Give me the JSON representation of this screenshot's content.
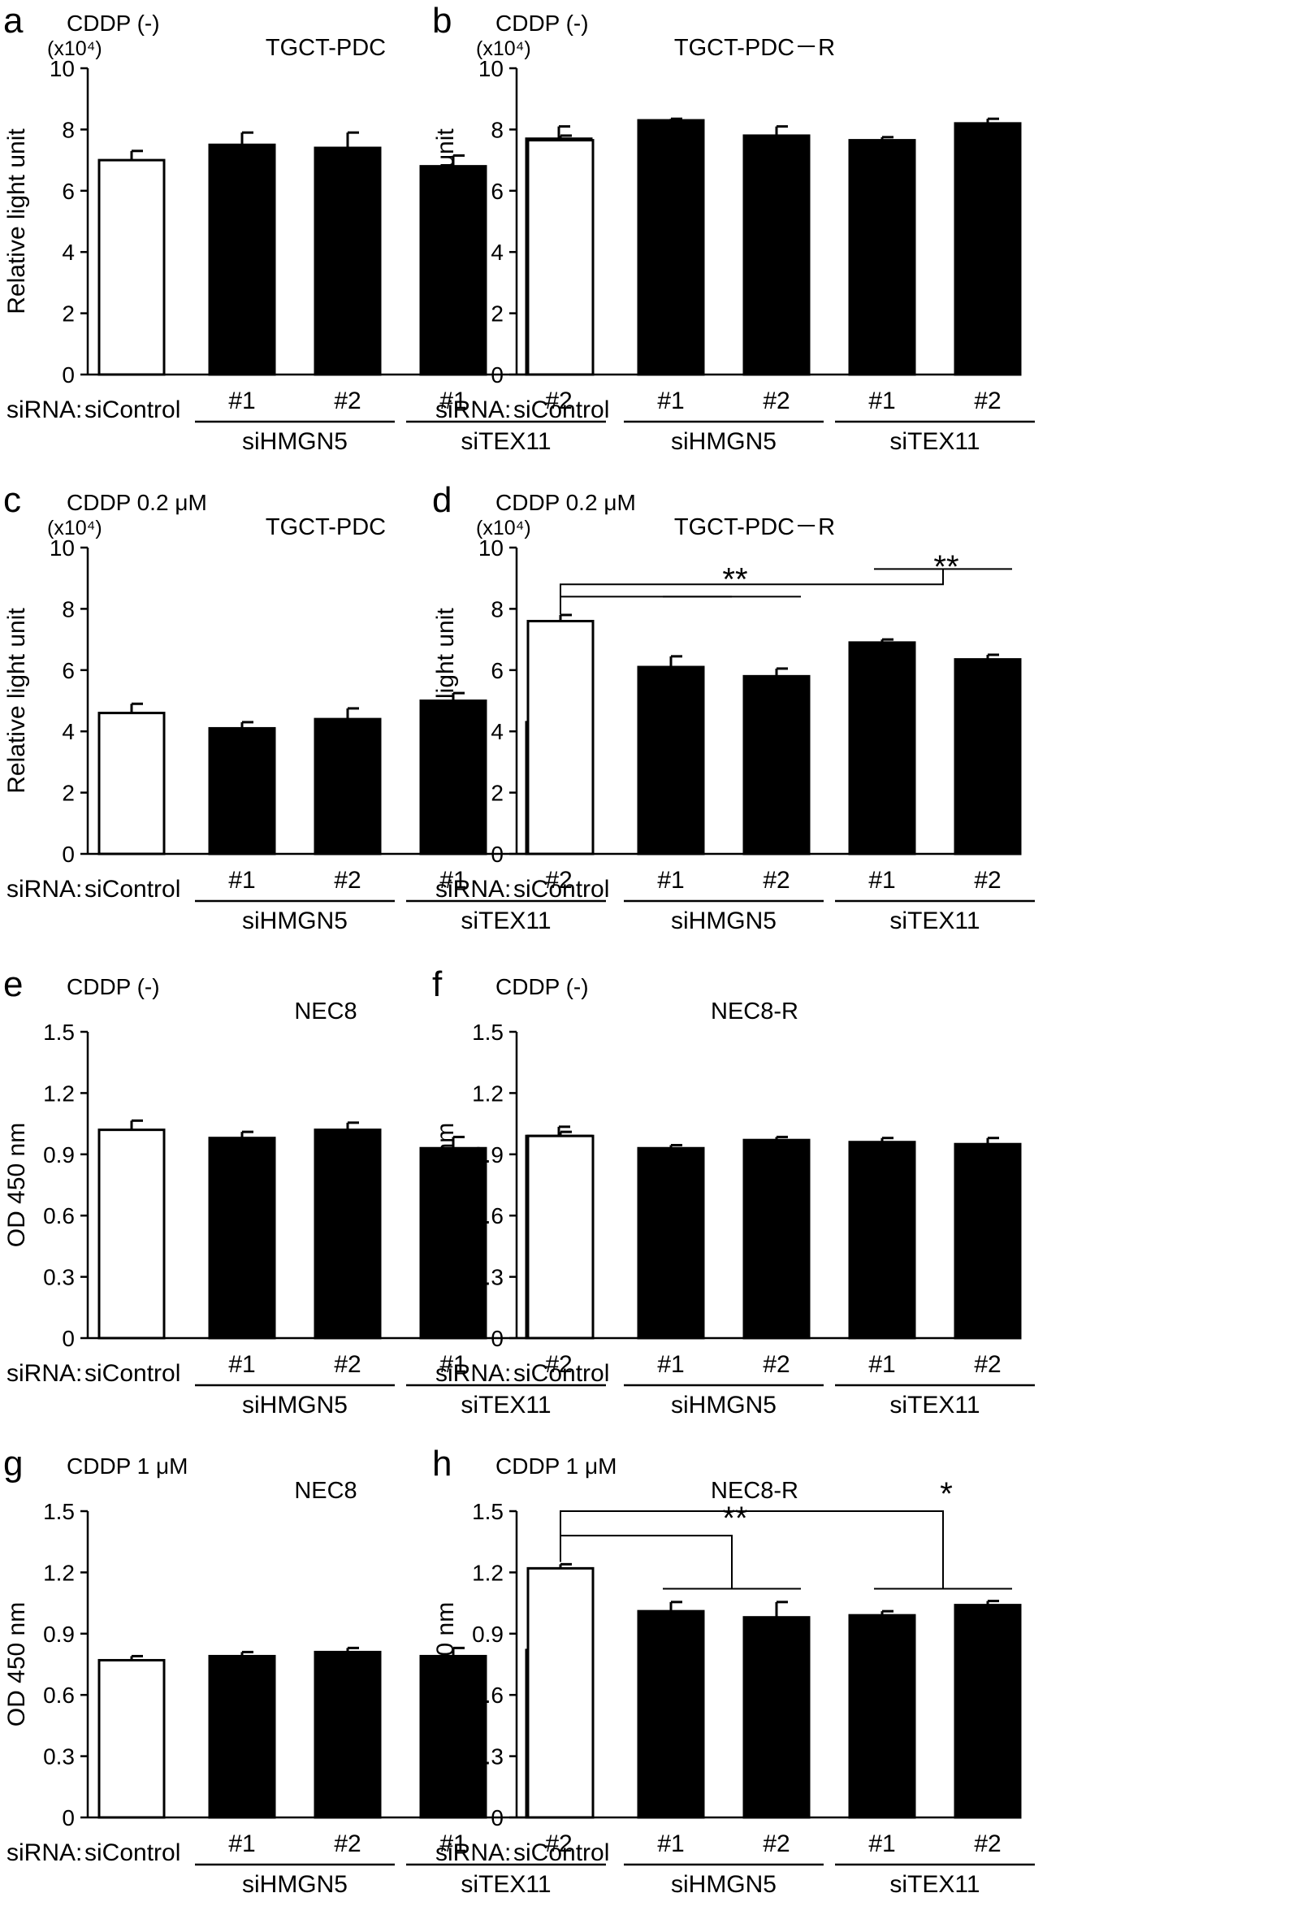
{
  "siRNA_label": "siRNA:",
  "chart_data": [
    {
      "type": "bar",
      "panel": "a",
      "condition": "CDDP (-)",
      "title": "TGCT-PDC",
      "ylabel": "Relative light unit",
      "y_multiplier": "(x10⁴)",
      "ylim": [
        0,
        10
      ],
      "yticks": [
        "0",
        "2",
        "4",
        "6",
        "8",
        "10"
      ],
      "categories": [
        "siControl",
        "#1",
        "#2",
        "#1",
        "#2"
      ],
      "groups": [
        "siHMGN5",
        "siTEX11"
      ],
      "values": [
        7.0,
        7.5,
        7.4,
        6.8,
        7.7
      ],
      "errors": [
        0.3,
        0.4,
        0.5,
        0.35,
        0.4
      ],
      "colors": [
        "#ffffff",
        "#000000",
        "#000000",
        "#000000",
        "#000000"
      ],
      "significance": []
    },
    {
      "type": "bar",
      "panel": "b",
      "condition": "CDDP (-)",
      "title": "TGCT-PDC－R",
      "ylabel": "Relative light unit",
      "y_multiplier": "(x10⁴)",
      "ylim": [
        0,
        10
      ],
      "yticks": [
        "0",
        "2",
        "4",
        "6",
        "8",
        "10"
      ],
      "categories": [
        "siControl",
        "#1",
        "#2",
        "#1",
        "#2"
      ],
      "groups": [
        "siHMGN5",
        "siTEX11"
      ],
      "values": [
        7.65,
        8.3,
        7.8,
        7.65,
        8.2
      ],
      "errors": [
        0.15,
        0.05,
        0.3,
        0.1,
        0.15
      ],
      "colors": [
        "#ffffff",
        "#000000",
        "#000000",
        "#000000",
        "#000000"
      ],
      "significance": []
    },
    {
      "type": "bar",
      "panel": "c",
      "condition": "CDDP 0.2 μM",
      "title": "TGCT-PDC",
      "ylabel": "Relative light unit",
      "y_multiplier": "(x10⁴)",
      "ylim": [
        0,
        10
      ],
      "yticks": [
        "0",
        "2",
        "4",
        "6",
        "8",
        "10"
      ],
      "categories": [
        "siControl",
        "#1",
        "#2",
        "#1",
        "#2"
      ],
      "groups": [
        "siHMGN5",
        "siTEX11"
      ],
      "values": [
        4.6,
        4.1,
        4.4,
        5.0,
        4.3
      ],
      "errors": [
        0.3,
        0.2,
        0.35,
        0.25,
        0.4
      ],
      "colors": [
        "#ffffff",
        "#000000",
        "#000000",
        "#000000",
        "#000000"
      ],
      "significance": []
    },
    {
      "type": "bar",
      "panel": "d",
      "condition": "CDDP 0.2 μM",
      "title": "TGCT-PDC－R",
      "ylabel": "Relative light unit",
      "y_multiplier": "(x10⁴)",
      "ylim": [
        0,
        10
      ],
      "yticks": [
        "0",
        "2",
        "4",
        "6",
        "8",
        "10"
      ],
      "categories": [
        "siControl",
        "#1",
        "#2",
        "#1",
        "#2"
      ],
      "groups": [
        "siHMGN5",
        "siTEX11"
      ],
      "values": [
        7.6,
        6.1,
        5.8,
        6.9,
        6.35
      ],
      "errors": [
        0.2,
        0.35,
        0.25,
        0.1,
        0.15
      ],
      "colors": [
        "#ffffff",
        "#000000",
        "#000000",
        "#000000",
        "#000000"
      ],
      "significance": [
        {
          "label": "**",
          "to_group": 0,
          "vert_y": 8.4,
          "bar_y": 7.4
        },
        {
          "label": "**",
          "to_group": 1,
          "vert_y": 9.3,
          "bar_y": 7.8
        }
      ]
    },
    {
      "type": "bar",
      "panel": "e",
      "condition": "CDDP (-)",
      "title": "NEC8",
      "ylabel": "OD 450 nm",
      "y_multiplier": "",
      "ylim": [
        0,
        1.5
      ],
      "yticks": [
        "0",
        "0.3",
        "0.6",
        "0.9",
        "1.2",
        "1.5"
      ],
      "categories": [
        "siControl",
        "#1",
        "#2",
        "#1",
        "#2"
      ],
      "groups": [
        "siHMGN5",
        "siTEX11"
      ],
      "values": [
        1.02,
        0.98,
        1.02,
        0.93,
        0.99
      ],
      "errors": [
        0.045,
        0.03,
        0.035,
        0.055,
        0.045
      ],
      "colors": [
        "#ffffff",
        "#000000",
        "#000000",
        "#000000",
        "#000000"
      ],
      "significance": []
    },
    {
      "type": "bar",
      "panel": "f",
      "condition": "CDDP (-)",
      "title": "NEC8-R",
      "ylabel": "OD 450 nm",
      "y_multiplier": "",
      "ylim": [
        0,
        1.5
      ],
      "yticks": [
        "0",
        "0.3",
        "0.6",
        "0.9",
        "1.2",
        "1.5"
      ],
      "categories": [
        "siControl",
        "#1",
        "#2",
        "#1",
        "#2"
      ],
      "groups": [
        "siHMGN5",
        "siTEX11"
      ],
      "values": [
        0.99,
        0.93,
        0.97,
        0.96,
        0.95
      ],
      "errors": [
        0.02,
        0.015,
        0.015,
        0.02,
        0.03
      ],
      "colors": [
        "#ffffff",
        "#000000",
        "#000000",
        "#000000",
        "#000000"
      ],
      "significance": []
    },
    {
      "type": "bar",
      "panel": "g",
      "condition": "CDDP 1 μM",
      "title": "NEC8",
      "ylabel": "OD 450 nm",
      "y_multiplier": "",
      "ylim": [
        0,
        1.5
      ],
      "yticks": [
        "0",
        "0.3",
        "0.6",
        "0.9",
        "1.2",
        "1.5"
      ],
      "categories": [
        "siControl",
        "#1",
        "#2",
        "#1",
        "#2"
      ],
      "groups": [
        "siHMGN5",
        "siTEX11"
      ],
      "values": [
        0.77,
        0.79,
        0.81,
        0.79,
        0.82
      ],
      "errors": [
        0.02,
        0.02,
        0.02,
        0.04,
        0.035
      ],
      "colors": [
        "#ffffff",
        "#000000",
        "#000000",
        "#000000",
        "#000000"
      ],
      "significance": []
    },
    {
      "type": "bar",
      "panel": "h",
      "condition": "CDDP 1 μM",
      "title": "NEC8-R",
      "ylabel": "OD 450 nm",
      "y_multiplier": "",
      "ylim": [
        0,
        1.5
      ],
      "yticks": [
        "0",
        "0.3",
        "0.6",
        "0.9",
        "1.2",
        "1.5"
      ],
      "categories": [
        "siControl",
        "#1",
        "#2",
        "#1",
        "#2"
      ],
      "groups": [
        "siHMGN5",
        "siTEX11"
      ],
      "values": [
        1.22,
        1.01,
        0.98,
        0.99,
        1.04
      ],
      "errors": [
        0.02,
        0.045,
        0.075,
        0.02,
        0.02
      ],
      "colors": [
        "#ffffff",
        "#000000",
        "#000000",
        "#000000",
        "#000000"
      ],
      "significance": [
        {
          "label": "**",
          "to_group": 0,
          "vert_y": 1.12,
          "bar_y": 1.23
        },
        {
          "label": "*",
          "to_group": 1,
          "vert_y": 1.12,
          "bar_y": 1.35
        }
      ]
    }
  ]
}
